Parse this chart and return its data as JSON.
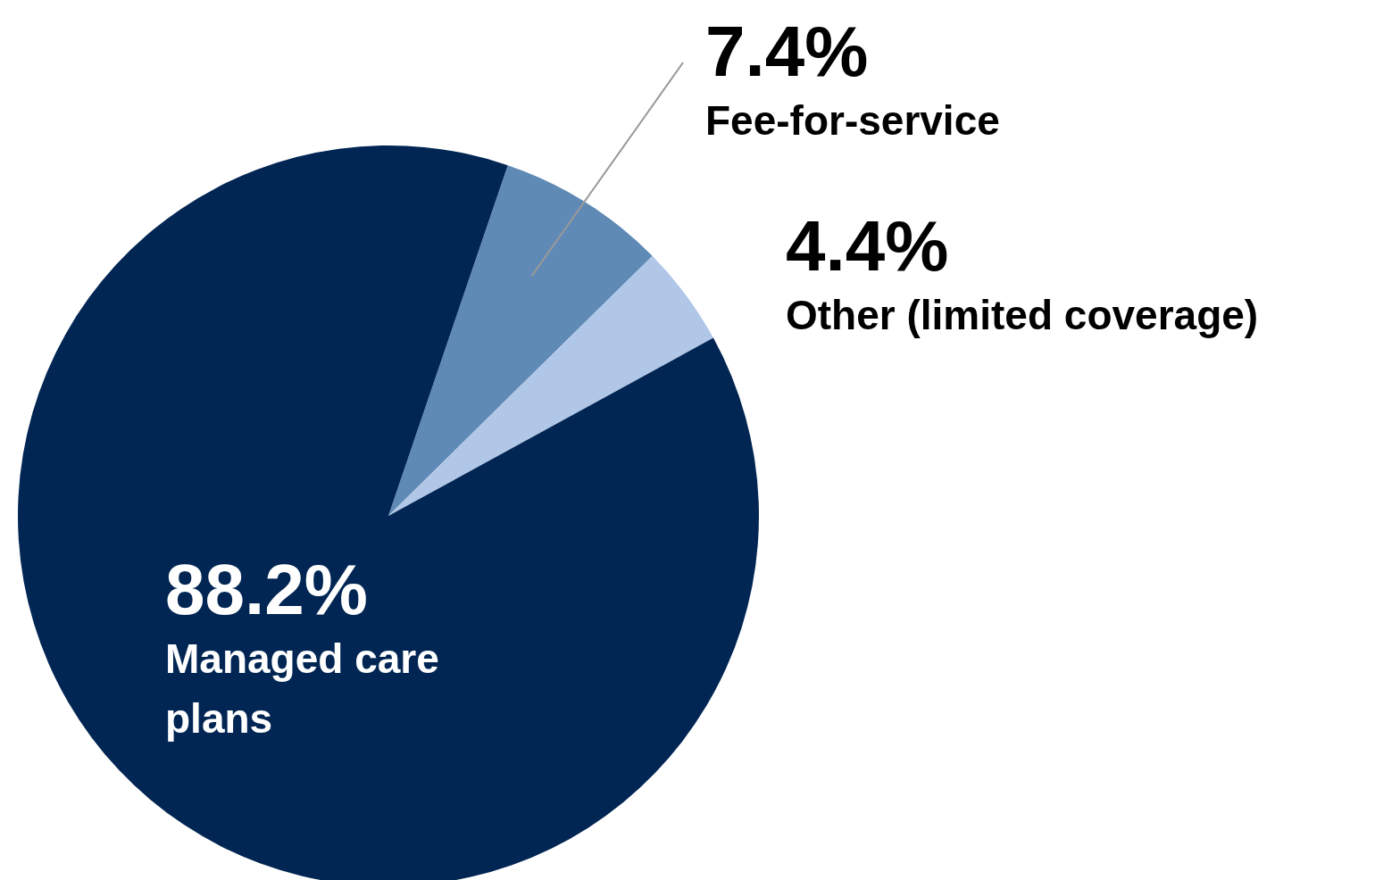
{
  "chart_data": {
    "type": "pie",
    "categories": [
      "Fee-for-service",
      "Other (limited coverage)",
      "Managed care plans"
    ],
    "values": [
      7.4,
      4.4,
      88.2
    ],
    "value_labels": [
      "7.4%",
      "4.4%",
      "88.2%"
    ],
    "colors": [
      "#5f8ab5",
      "#b0c7e8",
      "#012654"
    ]
  }
}
